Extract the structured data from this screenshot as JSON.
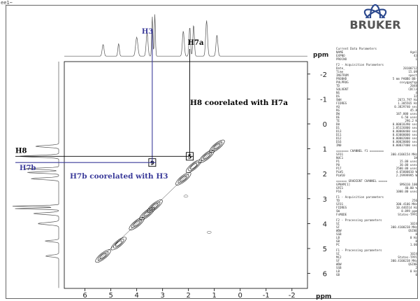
{
  "corner_label": "ee1~",
  "logo": {
    "text": "BRUKER"
  },
  "chart_data": {
    "type": "nmr-2d-cosy",
    "x_unit": "ppm",
    "y_unit": "ppm",
    "x_range": [
      6.8,
      -2.6
    ],
    "y_range": [
      -2.5,
      6.6
    ],
    "x_ticks": [
      "6",
      "5",
      "4",
      "3",
      "2",
      "1",
      "0",
      "-1",
      "-2"
    ],
    "x_tick_values": [
      6,
      5,
      4,
      3,
      2,
      1,
      0,
      -1,
      -2
    ],
    "y_ticks": [
      "-2",
      "-1",
      "0",
      "1",
      "2",
      "3",
      "4",
      "5",
      "6"
    ],
    "y_tick_values": [
      -2,
      -1,
      0,
      1,
      2,
      3,
      4,
      5,
      6
    ],
    "diagonal_peaks": [
      {
        "x": 5.3,
        "y": 5.3
      },
      {
        "x": 4.7,
        "y": 4.8
      },
      {
        "x": 4.0,
        "y": 4.0
      },
      {
        "x": 3.6,
        "y": 3.6
      },
      {
        "x": 3.3,
        "y": 3.3
      },
      {
        "x": 2.2,
        "y": 2.2
      },
      {
        "x": 1.8,
        "y": 1.7
      },
      {
        "x": 1.3,
        "y": 1.3
      },
      {
        "x": 0.9,
        "y": 0.9
      }
    ],
    "cross_peaks": [
      {
        "x": 3.4,
        "y": 1.55,
        "label": "9"
      },
      {
        "x": 1.95,
        "y": 1.3,
        "label": "5"
      },
      {
        "x": 1.2,
        "y": 4.35
      },
      {
        "x": 2.1,
        "y": 2.9
      }
    ],
    "annotations": {
      "h3": "H3",
      "h7a": "H7a",
      "h8": "H8",
      "h7b": "H7b",
      "h8_corr": "H8 coorelated with H7a",
      "h7b_corr": "H7b coorelated with H3"
    },
    "h3_shift": 3.4,
    "h7a_shift": 1.95,
    "h8_shift": 1.3,
    "h7b_shift": 1.55,
    "colors": {
      "annotation": "#3b3b9a",
      "lines_blue": "#3b3b9a",
      "lines_black": "#000000"
    }
  },
  "params": {
    "sections": [
      {
        "title": "Current Data Parameters",
        "rows": [
          [
            "NAME",
            "Agel"
          ],
          [
            "EXPNO",
            "43"
          ],
          [
            "PROCNO",
            "1"
          ]
        ]
      },
      {
        "title": "F2 - Acquisition Parameters",
        "rows": [
          [
            "Date_",
            "20100712"
          ],
          [
            "Time",
            "15.09"
          ],
          [
            "INSTRUM",
            "spect"
          ],
          [
            "PROBHD",
            "5 mm PABBO BB-"
          ],
          [
            "PULPROG",
            "cosygpqfqp"
          ],
          [
            "TD",
            "2048"
          ],
          [
            "SOLVENT",
            "CDCl3"
          ],
          [
            "NS",
            "4"
          ],
          [
            "DS",
            "32"
          ],
          [
            "SWH",
            "2673.797 Hz"
          ],
          [
            "FIDRES",
            "1.305565 Hz"
          ],
          [
            "AQ",
            "0.3829740 sec"
          ],
          [
            "RG",
            "45.8"
          ],
          [
            "DW",
            "187.000 usec"
          ],
          [
            "DE",
            "6.50 usec"
          ],
          [
            "TE",
            "296.2 K"
          ],
          [
            "D0",
            "0.00018390 sec"
          ],
          [
            "D1",
            "1.85326800 sec"
          ],
          [
            "D13",
            "0.00000400 sec"
          ],
          [
            "D11",
            "0.03000000 sec"
          ],
          [
            "D12",
            "0.00002000 sec"
          ],
          [
            "D16",
            "0.00020000 sec"
          ],
          [
            "IN0",
            "0.00037400 sec"
          ]
        ]
      },
      {
        "title": "======= CHANNEL f1 ========",
        "rows": [
          [
            "SFO1",
            "300.4106154 MHz"
          ],
          [
            "NUC1",
            "1H"
          ],
          [
            "P1",
            "15.00 usec"
          ],
          [
            "P0",
            "30.00 usec"
          ],
          [
            "P17",
            "2500.00 usec"
          ],
          [
            "PLW1",
            "4.65000010 W"
          ],
          [
            "PLW10",
            "2.29999995 W"
          ]
        ]
      },
      {
        "title": "====== GRADIENT CHANNEL =====",
        "rows": [
          [
            "GPNAM[1]",
            "SMSQ10.100"
          ],
          [
            "GPZ1",
            "40.00 %"
          ],
          [
            "P16",
            "1000.00 usec"
          ]
        ]
      },
      {
        "title": "F1 - Acquisition parameters",
        "rows": [
          [
            "TD",
            "256"
          ],
          [
            "SFO1",
            "300.4106 MHz"
          ],
          [
            "FIDRES",
            "10.446514 Hz"
          ],
          [
            "SW",
            "8.899 ppm"
          ],
          [
            "FnMODE",
            "States-TPPI"
          ]
        ]
      },
      {
        "title": "F2 - Processing parameters",
        "rows": [
          [
            "SI",
            "1024"
          ],
          [
            "SF",
            "300.4100238 MHz"
          ],
          [
            "WDW",
            "QSINE"
          ],
          [
            "SSB",
            "0"
          ],
          [
            "LB",
            "0 Hz"
          ],
          [
            "GB",
            "0"
          ],
          [
            "PC",
            "1.00"
          ]
        ]
      },
      {
        "title": "F1 - Processing parameters",
        "rows": [
          [
            "SI",
            "1024"
          ],
          [
            "MC2",
            "States-TPPI"
          ],
          [
            "SF",
            "300.4100238 MHz"
          ],
          [
            "WDW",
            "QSINE"
          ],
          [
            "SSB",
            "2"
          ],
          [
            "LB",
            "0 Hz"
          ],
          [
            "GB",
            "0"
          ]
        ]
      }
    ]
  }
}
